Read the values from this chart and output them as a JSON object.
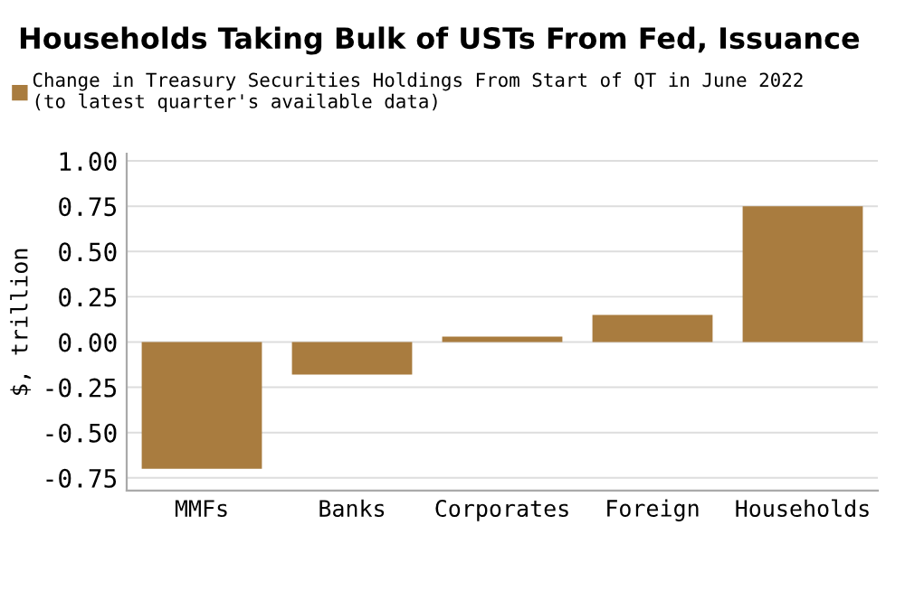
{
  "chart_data": {
    "type": "bar",
    "title": "Households Taking Bulk of USTs From Fed, Issuance",
    "ylabel": "$, trillion",
    "categories": [
      "MMFs",
      "Banks",
      "Corporates",
      "Foreign",
      "Households"
    ],
    "series": [
      {
        "name": "Change in Treasury Securities Holdings From Start of QT in June 2022\n(to latest quarter's available data)",
        "color": "#a97c3f",
        "values": [
          -0.7,
          -0.18,
          0.03,
          0.15,
          0.75
        ]
      }
    ],
    "ylim": [
      -0.82,
      1.04
    ],
    "yticks": [
      {
        "value": -0.75,
        "label": "-0.75"
      },
      {
        "value": -0.5,
        "label": "-0.50"
      },
      {
        "value": -0.25,
        "label": "-0.25"
      },
      {
        "value": 0,
        "label": "0.00"
      },
      {
        "value": 0.25,
        "label": "0.25"
      },
      {
        "value": 0.5,
        "label": "0.50"
      },
      {
        "value": 0.75,
        "label": "0.75"
      },
      {
        "value": 1,
        "label": "1.00"
      }
    ],
    "grid": "y",
    "legend": "top left"
  }
}
